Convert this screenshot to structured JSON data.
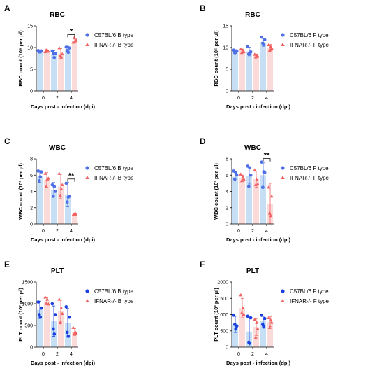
{
  "chart_data": [
    {
      "type": "bar",
      "letter": "A",
      "title": "RBC",
      "xlabel": "Days post - infection (dpi)",
      "ylabel": "RBC count (10⁶ per μl)",
      "categories": [
        "0",
        "2",
        "4"
      ],
      "ylim": [
        0,
        15
      ],
      "yticks": [
        0,
        5,
        10,
        15
      ],
      "legend_position": "right",
      "series": [
        {
          "name": "C57BL/6 B type",
          "marker": "circle",
          "color": "#4f6fe6",
          "bar_color": "#c7dff4",
          "values": [
            9.1,
            8.5,
            9.6
          ],
          "errors": [
            0.3,
            0.8,
            0.7
          ],
          "points": [
            [
              9.3,
              9.0,
              9.0,
              9.2
            ],
            [
              9.2,
              8.6,
              7.7,
              8.6
            ],
            [
              10.1,
              9.3,
              8.9,
              9.9
            ]
          ]
        },
        {
          "name": "IFNAR-/- B type",
          "marker": "triangle",
          "color": "#f06262",
          "bar_color": "#fbdada",
          "values": [
            9.2,
            8.6,
            11.6
          ],
          "errors": [
            0.3,
            1.2,
            0.6
          ],
          "points": [
            [
              9.0,
              9.4,
              9.3,
              9.1
            ],
            [
              9.9,
              8.1,
              7.8,
              8.5
            ],
            [
              11.2,
              12.2,
              11.5,
              11.7
            ]
          ]
        }
      ],
      "annotations": [
        {
          "text": "*",
          "category": "4"
        }
      ]
    },
    {
      "type": "bar",
      "letter": "B",
      "title": "RBC",
      "xlabel": "Days post - infection (dpi)",
      "ylabel": "RBC count (10⁶ per μl)",
      "categories": [
        "0",
        "2",
        "4"
      ],
      "ylim": [
        0,
        15
      ],
      "yticks": [
        0,
        5,
        10,
        15
      ],
      "legend_position": "right",
      "series": [
        {
          "name": "C57BL/6 F type",
          "marker": "circle",
          "color": "#4f6fe6",
          "bar_color": "#c7dff4",
          "values": [
            9.1,
            9.1,
            11.2
          ],
          "errors": [
            0.4,
            1.0,
            0.9
          ],
          "points": [
            [
              9.4,
              8.8,
              8.9,
              9.2
            ],
            [
              10.3,
              8.5,
              8.6,
              9.0
            ],
            [
              12.4,
              11.0,
              10.6,
              11.8
            ]
          ]
        },
        {
          "name": "IFNAR-/- F type",
          "marker": "triangle",
          "color": "#f06262",
          "bar_color": "#fbdada",
          "values": [
            9.2,
            8.1,
            10.0
          ],
          "errors": [
            0.4,
            0.4,
            0.7
          ],
          "points": [
            [
              9.6,
              8.8,
              9.4,
              9.0
            ],
            [
              8.4,
              7.8,
              8.2,
              8.0
            ],
            [
              10.6,
              9.3,
              10.2,
              9.8
            ]
          ]
        }
      ],
      "annotations": []
    },
    {
      "type": "bar",
      "letter": "C",
      "title": "WBC",
      "xlabel": "Days post - infection (dpi)",
      "ylabel": "WBC count (10³ per μl)",
      "categories": [
        "0",
        "2",
        "4"
      ],
      "ylim": [
        0,
        8
      ],
      "yticks": [
        0,
        2,
        4,
        6,
        8
      ],
      "legend_position": "right",
      "series": [
        {
          "name": "C57BL/6 B type",
          "marker": "circle",
          "color": "#4f6fe6",
          "bar_color": "#c7dff4",
          "values": [
            5.8,
            4.2,
            3.6
          ],
          "errors": [
            0.7,
            0.9,
            1.5
          ],
          "points": [
            [
              6.5,
              5.3,
              5.8,
              6.4
            ],
            [
              4.8,
              3.4,
              4.6,
              4.0
            ],
            [
              5.0,
              2.7,
              3.3,
              3.4
            ]
          ]
        },
        {
          "name": "IFNAR-/- B type",
          "marker": "triangle",
          "color": "#f06262",
          "bar_color": "#fbdada",
          "values": [
            5.4,
            4.6,
            1.2
          ],
          "errors": [
            0.9,
            1.5,
            0.1
          ],
          "points": [
            [
              6.2,
              4.6,
              5.5,
              5.6
            ],
            [
              6.2,
              3.5,
              4.3,
              4.8
            ],
            [
              1.1,
              1.2,
              1.3,
              1.1
            ]
          ]
        }
      ],
      "annotations": [
        {
          "text": "**",
          "category": "4"
        }
      ]
    },
    {
      "type": "bar",
      "letter": "D",
      "title": "WBC",
      "xlabel": "Days post - infection (dpi)",
      "ylabel": "WBC count (10³ per μl)",
      "categories": [
        "0",
        "2",
        "4"
      ],
      "ylim": [
        0,
        8
      ],
      "yticks": [
        0,
        2,
        4,
        6,
        8
      ],
      "legend_position": "right",
      "series": [
        {
          "name": "C57BL/6 F type",
          "marker": "circle",
          "color": "#4f6fe6",
          "bar_color": "#c7dff4",
          "values": [
            5.8,
            5.9,
            6.0
          ],
          "errors": [
            0.5,
            1.0,
            1.5
          ],
          "points": [
            [
              6.5,
              5.5,
              6.3,
              6.0
            ],
            [
              7.1,
              4.6,
              6.9,
              6.0
            ],
            [
              7.6,
              4.5,
              6.4,
              6.3
            ]
          ]
        },
        {
          "name": "IFNAR-/- F type",
          "marker": "triangle",
          "color": "#f06262",
          "bar_color": "#fbdada",
          "values": [
            5.6,
            5.5,
            2.5
          ],
          "errors": [
            0.4,
            1.0,
            2.5
          ],
          "points": [
            [
              6.1,
              5.3,
              5.8,
              5.5
            ],
            [
              6.6,
              4.8,
              5.4,
              4.9
            ],
            [
              4.5,
              1.3,
              1.0,
              3.4
            ]
          ]
        }
      ],
      "annotations": [
        {
          "text": "**",
          "category": "4"
        }
      ]
    },
    {
      "type": "bar",
      "letter": "E",
      "title": "PLT",
      "xlabel": "Days post - infection (dpi)",
      "ylabel": "PLT count (10³ per μl)",
      "categories": [
        "0",
        "2",
        "4"
      ],
      "ylim": [
        0,
        1500
      ],
      "yticks": [
        0,
        500,
        1000,
        1500
      ],
      "legend_position": "right",
      "series": [
        {
          "name": "C57BL/6 B type",
          "marker": "circle",
          "color": "#1a3fe0",
          "bar_color": "#c7dff4",
          "values": [
            860,
            600,
            560
          ],
          "errors": [
            200,
            350,
            330
          ],
          "points": [
            [
              1040,
              750,
              690,
              900
            ],
            [
              1000,
              420,
              300,
              750
            ],
            [
              930,
              340,
              250,
              690
            ]
          ]
        },
        {
          "name": "IFNAR-/- B type",
          "marker": "triangle",
          "color": "#f06262",
          "bar_color": "#fbdada",
          "values": [
            1060,
            830,
            350
          ],
          "errors": [
            80,
            250,
            80
          ],
          "points": [
            [
              1150,
              1000,
              1100,
              990
            ],
            [
              1100,
              560,
              900,
              770
            ],
            [
              450,
              300,
              350,
              310
            ]
          ]
        }
      ],
      "annotations": []
    },
    {
      "type": "bar",
      "letter": "F",
      "title": "PLT",
      "xlabel": "Days post - infection (dpi)",
      "ylabel": "PLT count (10³ per μl)",
      "categories": [
        "0",
        "2",
        "4"
      ],
      "ylim": [
        0,
        2000
      ],
      "yticks": [
        0,
        500,
        1000,
        1500,
        2000
      ],
      "legend_position": "right",
      "series": [
        {
          "name": "C57BL/6 F type",
          "marker": "circle",
          "color": "#1a3fe0",
          "bar_color": "#c7dff4",
          "values": [
            700,
            480,
            800
          ],
          "errors": [
            250,
            450,
            150
          ],
          "points": [
            [
              980,
              700,
              560,
              650
            ],
            [
              950,
              150,
              120,
              900
            ],
            [
              980,
              700,
              620,
              880
            ]
          ]
        },
        {
          "name": "IFNAR-/- F type",
          "marker": "triangle",
          "color": "#f06262",
          "bar_color": "#fbdada",
          "values": [
            1200,
            620,
            780
          ],
          "errors": [
            300,
            260,
            150
          ],
          "points": [
            [
              1600,
              1050,
              1200,
              1000
            ],
            [
              850,
              300,
              750,
              560
            ],
            [
              900,
              600,
              830,
              760
            ]
          ]
        }
      ],
      "annotations": []
    }
  ]
}
